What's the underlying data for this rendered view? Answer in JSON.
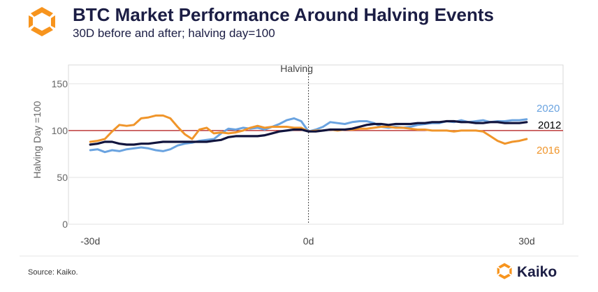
{
  "header": {
    "title": "BTC Market Performance Around Halving Events",
    "subtitle": "30D before and after; halving day=100"
  },
  "footer": {
    "source": "Source: Kaiko.",
    "brand": "Kaiko"
  },
  "colors": {
    "brand_orange": "#f7941d",
    "navy": "#11143d",
    "series_2020": "#6aa3e0",
    "series_2016": "#f0952a",
    "series_2012": "#11143d",
    "reference_line": "#b01515"
  },
  "chart_data": {
    "type": "line",
    "ylabel": "Halving Day =100",
    "ylim": [
      0,
      170
    ],
    "yticks": [
      0,
      50,
      100,
      150
    ],
    "xlim": [
      -33,
      35
    ],
    "xticks": [
      {
        "value": -30,
        "label": "-30d"
      },
      {
        "value": 0,
        "label": "0d"
      },
      {
        "value": 30,
        "label": "30d"
      }
    ],
    "grid": true,
    "reference_line": {
      "y": 100
    },
    "annotation": {
      "x": 0,
      "label": "Halving"
    },
    "series": [
      {
        "name": "2020",
        "x": [
          -30,
          -29,
          -28,
          -27,
          -26,
          -25,
          -24,
          -23,
          -22,
          -21,
          -20,
          -19,
          -18,
          -17,
          -16,
          -15,
          -14,
          -13,
          -12,
          -11,
          -10,
          -9,
          -8,
          -7,
          -6,
          -5,
          -4,
          -3,
          -2,
          -1,
          0,
          1,
          2,
          3,
          4,
          5,
          6,
          7,
          8,
          9,
          10,
          11,
          12,
          13,
          14,
          15,
          16,
          17,
          18,
          19,
          20,
          21,
          22,
          23,
          24,
          25,
          26,
          27,
          28,
          29,
          30
        ],
        "values": [
          79,
          80,
          77,
          79,
          78,
          80,
          81,
          82,
          81,
          79,
          78,
          80,
          84,
          86,
          87,
          89,
          90,
          91,
          97,
          102,
          101,
          103,
          102,
          103,
          101,
          104,
          107,
          111,
          113,
          110,
          99,
          101,
          104,
          109,
          108,
          107,
          109,
          110,
          110,
          108,
          104,
          103,
          104,
          103,
          104,
          106,
          107,
          108,
          108,
          110,
          109,
          111,
          109,
          110,
          111,
          109,
          110,
          110,
          111,
          111,
          112
        ]
      },
      {
        "name": "2016",
        "x": [
          -30,
          -29,
          -28,
          -27,
          -26,
          -25,
          -24,
          -23,
          -22,
          -21,
          -20,
          -19,
          -18,
          -17,
          -16,
          -15,
          -14,
          -13,
          -12,
          -11,
          -10,
          -9,
          -8,
          -7,
          -6,
          -5,
          -4,
          -3,
          -2,
          -1,
          0,
          1,
          2,
          3,
          4,
          5,
          6,
          7,
          8,
          9,
          10,
          11,
          12,
          13,
          14,
          15,
          16,
          17,
          18,
          19,
          20,
          21,
          22,
          23,
          24,
          25,
          26,
          27,
          28,
          29,
          30
        ],
        "values": [
          88,
          89,
          91,
          99,
          106,
          105,
          106,
          113,
          114,
          116,
          116,
          113,
          104,
          96,
          91,
          101,
          103,
          97,
          98,
          97,
          98,
          100,
          103,
          105,
          103,
          104,
          104,
          104,
          103,
          103,
          99,
          100,
          100,
          101,
          100,
          101,
          101,
          102,
          102,
          103,
          104,
          104,
          103,
          103,
          102,
          101,
          101,
          100,
          100,
          100,
          99,
          100,
          100,
          100,
          99,
          94,
          89,
          86,
          88,
          89,
          91
        ]
      },
      {
        "name": "2012",
        "x": [
          -30,
          -29,
          -28,
          -27,
          -26,
          -25,
          -24,
          -23,
          -22,
          -21,
          -20,
          -19,
          -18,
          -17,
          -16,
          -15,
          -14,
          -13,
          -12,
          -11,
          -10,
          -9,
          -8,
          -7,
          -6,
          -5,
          -4,
          -3,
          -2,
          -1,
          0,
          1,
          2,
          3,
          4,
          5,
          6,
          7,
          8,
          9,
          10,
          11,
          12,
          13,
          14,
          15,
          16,
          17,
          18,
          19,
          20,
          21,
          22,
          23,
          24,
          25,
          26,
          27,
          28,
          29,
          30
        ],
        "values": [
          85,
          86,
          88,
          88,
          86,
          85,
          85,
          86,
          86,
          87,
          88,
          88,
          88,
          88,
          88,
          88,
          88,
          89,
          90,
          93,
          94,
          94,
          94,
          94,
          95,
          97,
          99,
          100,
          101,
          101,
          99,
          99,
          100,
          101,
          101,
          101,
          102,
          104,
          106,
          107,
          107,
          106,
          107,
          107,
          107,
          108,
          108,
          109,
          109,
          110,
          110,
          109,
          109,
          108,
          108,
          109,
          109,
          108,
          108,
          108,
          109
        ]
      }
    ]
  }
}
